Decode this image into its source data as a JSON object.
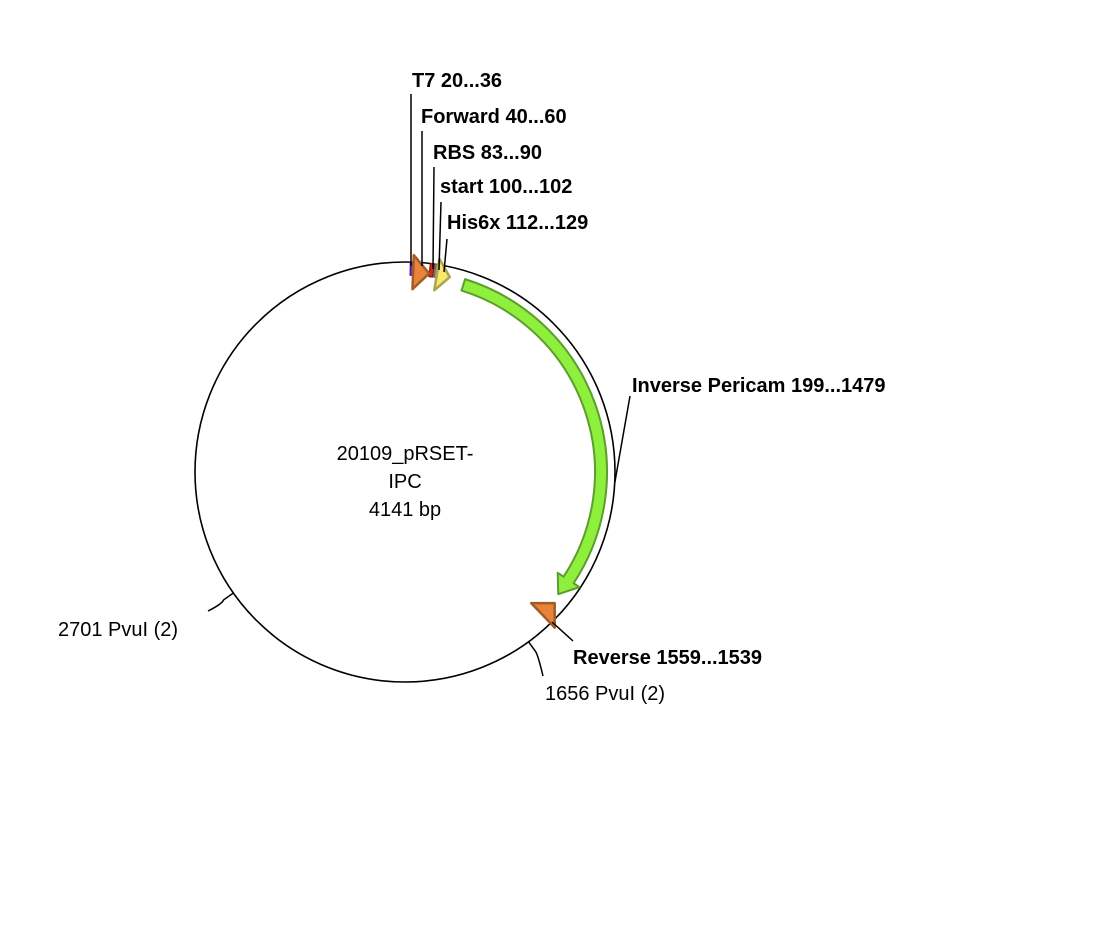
{
  "plasmid": {
    "name_line1": "20109_pRSET-",
    "name_line2": "IPC",
    "length_label": "4141 bp",
    "length_bp": 4141
  },
  "features": [
    {
      "id": "t7",
      "label": "T7 20...36",
      "start": 20,
      "end": 36,
      "direction": "none",
      "color": "#7d2fc0"
    },
    {
      "id": "forward",
      "label": "Forward 40...60",
      "start": 40,
      "end": 60,
      "direction": "forward",
      "color": "#e8843a"
    },
    {
      "id": "rbs",
      "label": "RBS 83...90",
      "start": 83,
      "end": 90,
      "direction": "none",
      "color": "#d42a1e"
    },
    {
      "id": "start",
      "label": "start 100...102",
      "start": 100,
      "end": 102,
      "direction": "none",
      "color": "#9a9a9a"
    },
    {
      "id": "his6x",
      "label": "His6x 112...129",
      "start": 112,
      "end": 129,
      "direction": "forward",
      "color": "#f8e96e"
    },
    {
      "id": "inverse-pericam",
      "label": "Inverse Pericam 199...1479",
      "start": 199,
      "end": 1479,
      "direction": "forward",
      "color": "#8ef03c"
    },
    {
      "id": "reverse",
      "label": "Reverse 1559...1539",
      "start": 1539,
      "end": 1559,
      "direction": "reverse",
      "color": "#e8843a"
    }
  ],
  "sites": [
    {
      "id": "pvui-1656",
      "label": "1656 PvuI (2)",
      "position": 1656
    },
    {
      "id": "pvui-2701",
      "label": "2701 PvuI (2)",
      "position": 2701
    }
  ]
}
